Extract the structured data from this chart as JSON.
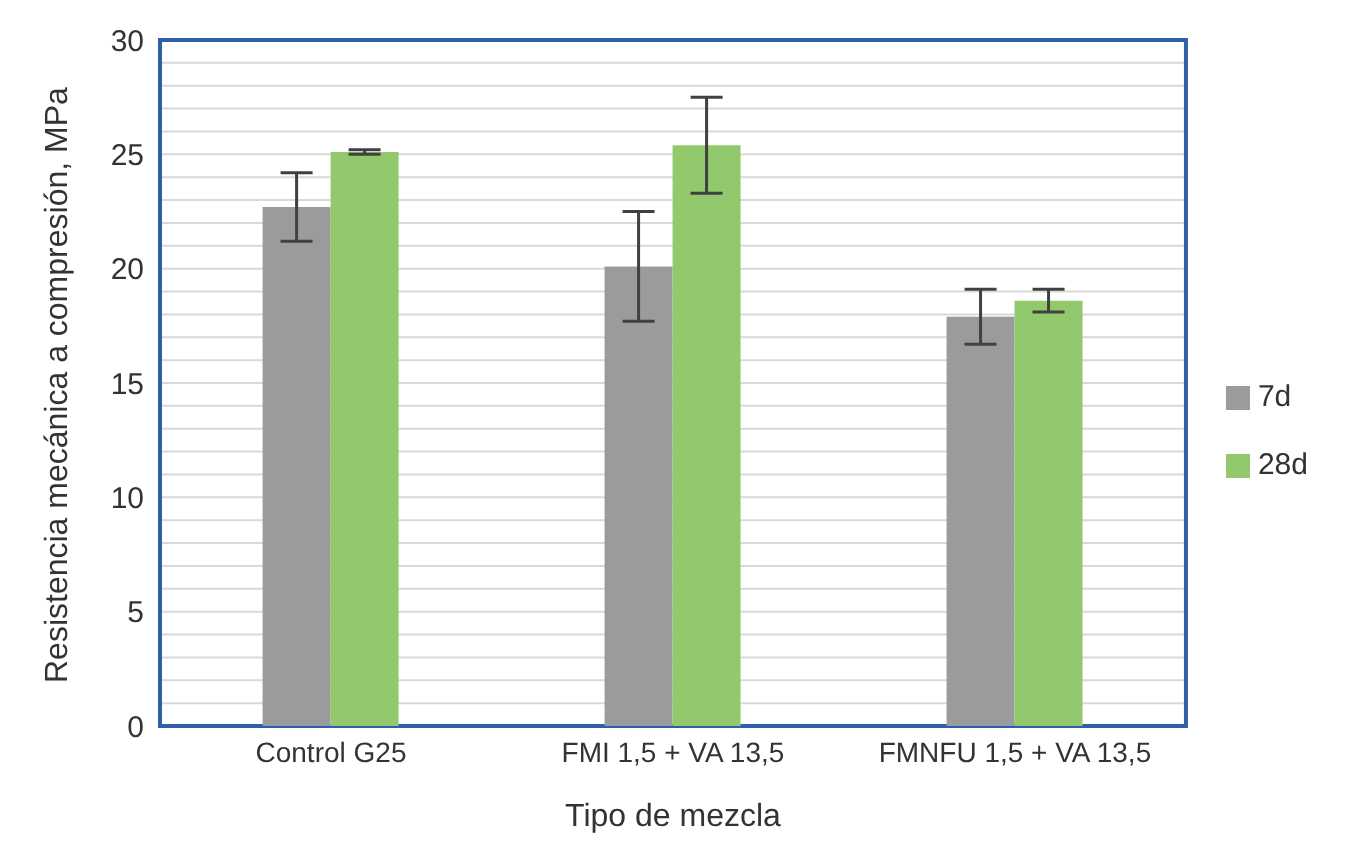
{
  "chart_data": {
    "type": "bar",
    "xlabel": "Tipo de mezcla",
    "ylabel": "Resistencia mecánica a compresión, MPa",
    "categories": [
      "Control G25",
      "FMI 1,5 + VA 13,5",
      "FMNFU 1,5 + VA 13,5"
    ],
    "series": [
      {
        "name": "7d",
        "color": "#999b9c",
        "values": [
          22.7,
          20.1,
          17.9
        ],
        "errors": [
          1.5,
          2.4,
          1.2
        ]
      },
      {
        "name": "28d",
        "color": "#92c96d",
        "values": [
          25.1,
          25.4,
          18.6
        ],
        "errors": [
          0.1,
          2.1,
          0.5
        ]
      }
    ],
    "ylim": [
      0,
      30
    ],
    "yticks": [
      0,
      {
        "value": 1,
        "label": null
      },
      {
        "value": 2,
        "label": null
      },
      {
        "value": 3,
        "label": null
      },
      {
        "value": 4,
        "label": null
      },
      5,
      {
        "value": 6,
        "label": null
      },
      {
        "value": 7,
        "label": null
      },
      {
        "value": 8,
        "label": null
      },
      {
        "value": 9,
        "label": null
      },
      10,
      {
        "value": 11,
        "label": null
      },
      {
        "value": 12,
        "label": null
      },
      {
        "value": 13,
        "label": null
      },
      {
        "value": 14,
        "label": null
      },
      15,
      {
        "value": 16,
        "label": null
      },
      {
        "value": 17,
        "label": null
      },
      {
        "value": 18,
        "label": null
      },
      {
        "value": 19,
        "label": null
      },
      20,
      {
        "value": 21,
        "label": null
      },
      {
        "value": 22,
        "label": null
      },
      {
        "value": 23,
        "label": null
      },
      {
        "value": 24,
        "label": null
      },
      25,
      {
        "value": 26,
        "label": null
      },
      {
        "value": 27,
        "label": null
      },
      {
        "value": 28,
        "label": null
      },
      {
        "value": 29,
        "label": null
      },
      30
    ],
    "grid": "y",
    "legend": "right"
  }
}
